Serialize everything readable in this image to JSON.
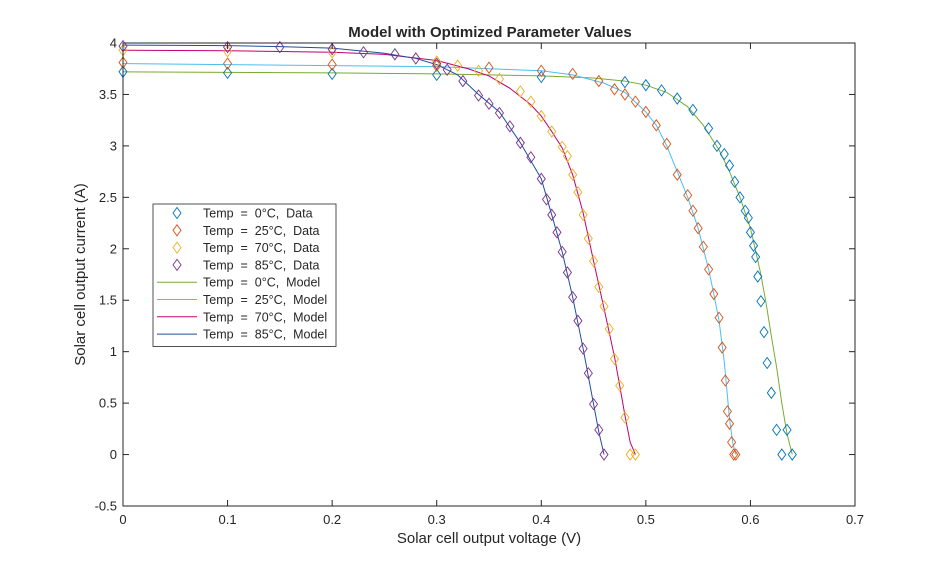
{
  "chart_data": {
    "type": "scatter",
    "title": "Model with Optimized Parameter Values",
    "xlabel": "Solar cell output voltage (V)",
    "ylabel": "Solar cell output current (A)",
    "xlim": [
      0,
      0.7
    ],
    "ylim": [
      -0.5,
      4
    ],
    "xticks": [
      0,
      0.1,
      0.2,
      0.3,
      0.4,
      0.5,
      0.6,
      0.7
    ],
    "xtick_labels": [
      "0",
      "0.1",
      "0.2",
      "0.3",
      "0.4",
      "0.5",
      "0.6",
      "0.7"
    ],
    "yticks": [
      -0.5,
      0,
      0.5,
      1,
      1.5,
      2,
      2.5,
      3,
      3.5,
      4
    ],
    "ytick_labels": [
      "-0.5",
      "0",
      "0.5",
      "1",
      "1.5",
      "2",
      "2.5",
      "3",
      "3.5",
      "4"
    ],
    "grid": false,
    "legend_position": "middle-left",
    "series": [
      {
        "name": "Temp  =  0°C,  Data",
        "kind": "data",
        "color": "#0072BD",
        "x": [
          0,
          0.1,
          0.2,
          0.3,
          0.4,
          0.48,
          0.5,
          0.515,
          0.53,
          0.545,
          0.56,
          0.568,
          0.575,
          0.58,
          0.585,
          0.59,
          0.595,
          0.598,
          0.6,
          0.603,
          0.605,
          0.607,
          0.61,
          0.613,
          0.616,
          0.62,
          0.625,
          0.63,
          0.635,
          0.64
        ],
        "y": [
          3.72,
          3.71,
          3.7,
          3.69,
          3.67,
          3.62,
          3.59,
          3.54,
          3.46,
          3.35,
          3.17,
          3.0,
          2.92,
          2.81,
          2.65,
          2.5,
          2.37,
          2.3,
          2.16,
          2.03,
          1.92,
          1.73,
          1.49,
          1.19,
          0.89,
          0.6,
          0.24,
          0.0,
          0.24,
          0.0
        ]
      },
      {
        "name": "Temp  =  25°C,  Data",
        "kind": "data",
        "color": "#D95319",
        "x": [
          0,
          0.1,
          0.2,
          0.3,
          0.35,
          0.4,
          0.43,
          0.455,
          0.47,
          0.48,
          0.49,
          0.5,
          0.51,
          0.52,
          0.53,
          0.54,
          0.545,
          0.55,
          0.555,
          0.56,
          0.565,
          0.57,
          0.573,
          0.576,
          0.578,
          0.58,
          0.582,
          0.584,
          0.586
        ],
        "y": [
          3.81,
          3.8,
          3.79,
          3.78,
          3.76,
          3.73,
          3.7,
          3.63,
          3.55,
          3.5,
          3.43,
          3.33,
          3.2,
          3.02,
          2.72,
          2.52,
          2.37,
          2.2,
          2.02,
          1.8,
          1.56,
          1.33,
          1.04,
          0.72,
          0.42,
          0.3,
          0.12,
          0.0,
          0.0
        ]
      },
      {
        "name": "Temp  =  70°C,  Data",
        "kind": "data",
        "color": "#EDB120",
        "x": [
          0,
          0.1,
          0.2,
          0.3,
          0.32,
          0.34,
          0.36,
          0.38,
          0.39,
          0.4,
          0.41,
          0.42,
          0.425,
          0.43,
          0.435,
          0.44,
          0.445,
          0.45,
          0.455,
          0.46,
          0.465,
          0.47,
          0.475,
          0.48,
          0.485,
          0.49
        ],
        "y": [
          3.93,
          3.92,
          3.91,
          3.82,
          3.78,
          3.73,
          3.65,
          3.53,
          3.43,
          3.29,
          3.14,
          2.99,
          2.9,
          2.72,
          2.55,
          2.33,
          2.1,
          1.88,
          1.63,
          1.44,
          1.22,
          0.93,
          0.67,
          0.36,
          0.0,
          0.0
        ]
      },
      {
        "name": "Temp  =  85°C,  Data",
        "kind": "data",
        "color": "#7E2F8E",
        "x": [
          0,
          0.1,
          0.15,
          0.2,
          0.23,
          0.26,
          0.28,
          0.3,
          0.31,
          0.325,
          0.34,
          0.35,
          0.36,
          0.37,
          0.38,
          0.39,
          0.4,
          0.405,
          0.41,
          0.415,
          0.42,
          0.425,
          0.43,
          0.435,
          0.44,
          0.445,
          0.45,
          0.455,
          0.46
        ],
        "y": [
          3.97,
          3.96,
          3.96,
          3.94,
          3.91,
          3.89,
          3.85,
          3.8,
          3.74,
          3.63,
          3.49,
          3.41,
          3.32,
          3.19,
          3.03,
          2.89,
          2.68,
          2.48,
          2.33,
          2.16,
          1.97,
          1.77,
          1.53,
          1.3,
          1.03,
          0.79,
          0.49,
          0.24,
          0.0
        ]
      },
      {
        "name": "Temp  =  0°C,  Model",
        "kind": "model",
        "color": "#77AC30",
        "x": [
          0,
          0.1,
          0.2,
          0.3,
          0.4,
          0.45,
          0.48,
          0.5,
          0.52,
          0.54,
          0.555,
          0.57,
          0.58,
          0.59,
          0.6,
          0.61,
          0.615,
          0.62,
          0.625,
          0.63,
          0.635,
          0.64
        ],
        "y": [
          3.72,
          3.715,
          3.71,
          3.7,
          3.68,
          3.66,
          3.63,
          3.59,
          3.52,
          3.38,
          3.2,
          2.96,
          2.75,
          2.5,
          2.2,
          1.75,
          1.47,
          1.15,
          0.85,
          0.5,
          0.2,
          0.0
        ]
      },
      {
        "name": "Temp  =  25°C,  Model",
        "kind": "model",
        "color": "#4DBEEE",
        "x": [
          0,
          0.1,
          0.2,
          0.3,
          0.35,
          0.4,
          0.43,
          0.46,
          0.48,
          0.5,
          0.51,
          0.52,
          0.53,
          0.54,
          0.55,
          0.56,
          0.565,
          0.57,
          0.575,
          0.58,
          0.583,
          0.586
        ],
        "y": [
          3.8,
          3.79,
          3.78,
          3.77,
          3.75,
          3.73,
          3.69,
          3.61,
          3.52,
          3.33,
          3.2,
          3.0,
          2.75,
          2.5,
          2.2,
          1.8,
          1.56,
          1.3,
          0.9,
          0.35,
          0.12,
          0.0
        ]
      },
      {
        "name": "Temp  =  70°C,  Model",
        "kind": "model",
        "color": "#C2006E",
        "x": [
          0,
          0.1,
          0.2,
          0.25,
          0.3,
          0.33,
          0.35,
          0.37,
          0.39,
          0.4,
          0.41,
          0.42,
          0.43,
          0.44,
          0.45,
          0.46,
          0.47,
          0.475,
          0.48,
          0.485,
          0.49
        ],
        "y": [
          3.93,
          3.925,
          3.91,
          3.89,
          3.83,
          3.75,
          3.68,
          3.56,
          3.4,
          3.29,
          3.14,
          2.98,
          2.72,
          2.35,
          1.88,
          1.42,
          0.95,
          0.67,
          0.38,
          0.12,
          0.0
        ]
      },
      {
        "name": "Temp  =  85°C,  Model",
        "kind": "model",
        "color": "#1F4E9E",
        "x": [
          0,
          0.1,
          0.15,
          0.2,
          0.25,
          0.28,
          0.3,
          0.32,
          0.34,
          0.36,
          0.38,
          0.4,
          0.41,
          0.42,
          0.43,
          0.44,
          0.45,
          0.455,
          0.46
        ],
        "y": [
          3.98,
          3.975,
          3.965,
          3.95,
          3.9,
          3.85,
          3.79,
          3.69,
          3.5,
          3.33,
          3.03,
          2.68,
          2.33,
          1.97,
          1.53,
          1.03,
          0.49,
          0.22,
          0.0
        ]
      }
    ]
  }
}
